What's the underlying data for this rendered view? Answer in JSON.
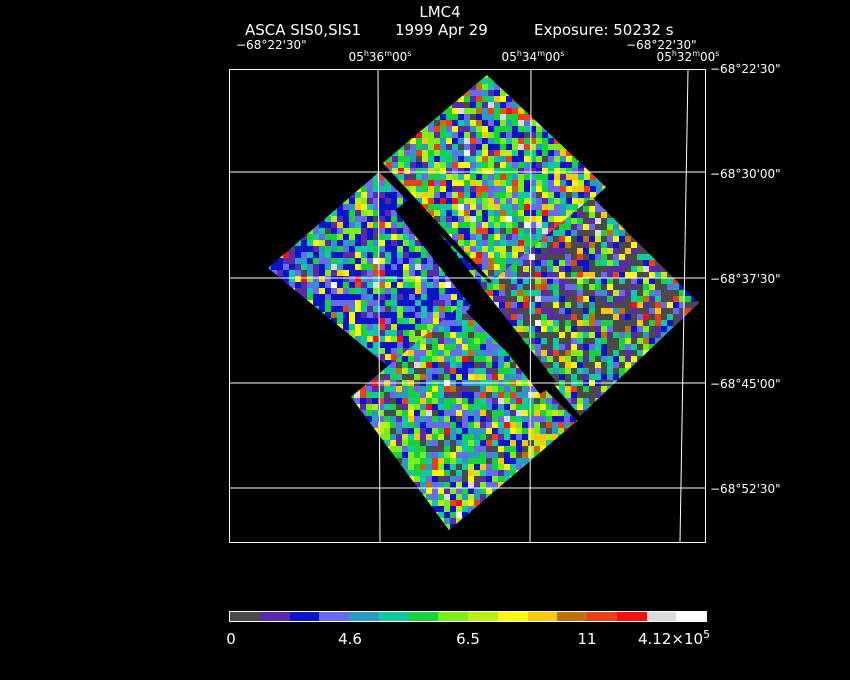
{
  "header": {
    "object": "LMC4",
    "instrument": "ASCA SIS0,SIS1",
    "date": "1999 Apr 29",
    "exposure": "Exposure: 50232 s"
  },
  "ra_labels": [
    {
      "h": "05",
      "m": "36",
      "s": "00"
    },
    {
      "h": "05",
      "m": "34",
      "s": "00"
    },
    {
      "h": "05",
      "m": "32",
      "s": "00"
    }
  ],
  "dec_top_left": "−68°22'30\"",
  "dec_top_right": "−68°22'30\"",
  "dec_labels": [
    "−68°22'30\"",
    "−68°30'00\"",
    "−68°37'30\"",
    "−68°45'00\"",
    "−68°52'30\""
  ],
  "colorbar": {
    "colors": [
      "#4a4a4a",
      "#5a2aa8",
      "#0a14c8",
      "#6a6af0",
      "#2a9ac0",
      "#12c8a0",
      "#16d23c",
      "#7aee1a",
      "#bcee12",
      "#fafa08",
      "#fcc808",
      "#c07008",
      "#e8401a",
      "#fa0e0e",
      "#dcdcdc",
      "#ffffff"
    ],
    "tick_labels": [
      "0",
      "4.6",
      "6.5",
      "11",
      "4.12×10"
    ],
    "tick_exponent": "5"
  }
}
